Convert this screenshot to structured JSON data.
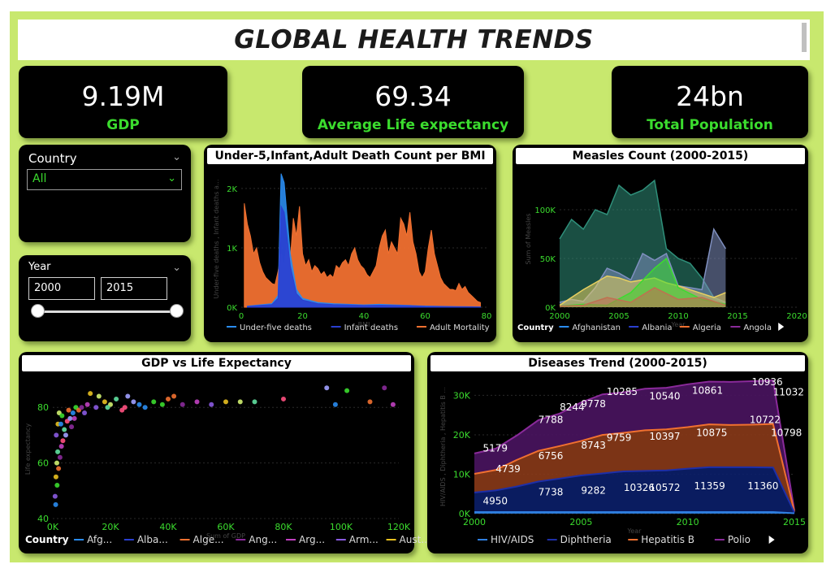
{
  "title": "GLOBAL HEALTH TRENDS",
  "kpis": [
    {
      "value": "9.19M",
      "label": "GDP"
    },
    {
      "value": "69.34",
      "label": "Average Life expectancy"
    },
    {
      "value": "24bn",
      "label": "Total Population"
    }
  ],
  "slicers": {
    "country": {
      "label": "Country",
      "value": "All"
    },
    "year": {
      "label": "Year",
      "from": "2000",
      "to": "2015"
    }
  },
  "colors": {
    "background": "#c8e86e",
    "card": "#000000",
    "accent": "#3bdc2e",
    "under_five": "#2a8cf0",
    "infant": "#2a3fd0",
    "adult": "#f07030",
    "hiv": "#2f7fe0",
    "diphtheria": "#1e2fa8",
    "hepatitis": "#f07030",
    "polio": "#8a2a9a"
  },
  "chart_data": [
    {
      "type": "area",
      "title": "Under-5,Infant,Adult Death Count per BMI",
      "xlabel": "BMI",
      "ylabel": "Under-five deaths , Infant deaths a...",
      "x_ticks": [
        "0",
        "20",
        "40",
        "60",
        "80"
      ],
      "y_ticks": [
        "0K",
        "1K",
        "2K"
      ],
      "xlim": [
        0,
        80
      ],
      "ylim": [
        0,
        2300
      ],
      "series": [
        {
          "name": "Under-five deaths",
          "x": [
            2,
            6,
            10,
            12,
            13,
            14,
            15,
            16,
            18,
            20,
            25,
            30,
            35,
            40,
            45,
            50,
            55,
            60,
            65,
            70,
            75,
            78
          ],
          "values": [
            20,
            40,
            60,
            200,
            2250,
            2100,
            1500,
            900,
            300,
            150,
            80,
            60,
            50,
            40,
            50,
            40,
            30,
            20,
            15,
            10,
            8,
            5
          ]
        },
        {
          "name": "Infant deaths",
          "x": [
            2,
            6,
            10,
            12,
            13,
            14,
            15,
            16,
            18,
            20,
            25,
            30,
            35,
            40,
            45,
            50,
            55,
            60,
            65,
            70,
            75,
            78
          ],
          "values": [
            15,
            30,
            45,
            150,
            1700,
            1600,
            1150,
            700,
            230,
            120,
            60,
            45,
            40,
            30,
            35,
            30,
            25,
            15,
            12,
            8,
            6,
            4
          ]
        },
        {
          "name": "Adult Mortality",
          "x": [
            1,
            2,
            3,
            4,
            5,
            6,
            7,
            8,
            9,
            10,
            11,
            12,
            13,
            14,
            15,
            16,
            17,
            18,
            19,
            20,
            21,
            22,
            23,
            24,
            25,
            26,
            27,
            28,
            29,
            30,
            31,
            32,
            33,
            34,
            35,
            36,
            37,
            38,
            39,
            40,
            41,
            42,
            43,
            44,
            45,
            46,
            47,
            48,
            49,
            50,
            51,
            52,
            53,
            54,
            55,
            56,
            57,
            58,
            59,
            60,
            61,
            62,
            63,
            64,
            65,
            66,
            67,
            68,
            69,
            70,
            71,
            72,
            73,
            74,
            75,
            76,
            77,
            78
          ],
          "values": [
            1750,
            1400,
            1200,
            900,
            1000,
            750,
            600,
            500,
            450,
            400,
            380,
            600,
            900,
            700,
            1100,
            800,
            1500,
            1200,
            1700,
            900,
            700,
            800,
            600,
            700,
            650,
            550,
            600,
            500,
            550,
            500,
            700,
            650,
            750,
            800,
            700,
            900,
            1000,
            800,
            700,
            650,
            550,
            500,
            600,
            700,
            1000,
            1200,
            1300,
            900,
            1100,
            1000,
            900,
            1500,
            1400,
            1200,
            1600,
            1100,
            900,
            600,
            500,
            600,
            1000,
            1300,
            900,
            700,
            500,
            400,
            350,
            300,
            300,
            280,
            400,
            300,
            350,
            250,
            200,
            150,
            100,
            80
          ]
        }
      ]
    },
    {
      "type": "area",
      "title": "Measles Count (2000-2015)",
      "xlabel": "Year",
      "ylabel": "Sum of Measles",
      "x_ticks": [
        "2000",
        "2005",
        "2010",
        "2015",
        "2020"
      ],
      "y_ticks": [
        "0K",
        "50K",
        "100K"
      ],
      "xlim": [
        2000,
        2020
      ],
      "ylim": [
        0,
        140000
      ],
      "legend_title": "Country",
      "legend": [
        "Afghanistan",
        "Albania",
        "Algeria",
        "Angola"
      ],
      "series": [
        {
          "color": "#2f8f7a",
          "x": [
            2000,
            2001,
            2002,
            2003,
            2004,
            2005,
            2006,
            2007,
            2008,
            2009,
            2010,
            2011,
            2012,
            2013,
            2014
          ],
          "values": [
            70000,
            90000,
            80000,
            100000,
            95000,
            125000,
            115000,
            120000,
            130000,
            60000,
            50000,
            45000,
            30000,
            10000,
            5000
          ]
        },
        {
          "color": "#8090c0",
          "x": [
            2000,
            2001,
            2002,
            2003,
            2004,
            2005,
            2006,
            2007,
            2008,
            2009,
            2010,
            2011,
            2012,
            2013,
            2014
          ],
          "values": [
            5000,
            8000,
            6000,
            20000,
            40000,
            35000,
            28000,
            55000,
            48000,
            55000,
            22000,
            20000,
            18000,
            80000,
            60000
          ]
        },
        {
          "color": "#e8d060",
          "x": [
            2000,
            2001,
            2002,
            2003,
            2004,
            2005,
            2006,
            2007,
            2008,
            2009,
            2010,
            2011,
            2012,
            2013,
            2014
          ],
          "values": [
            2000,
            10000,
            18000,
            25000,
            32000,
            30000,
            26000,
            28000,
            30000,
            25000,
            22000,
            18000,
            14000,
            10000,
            15000
          ]
        },
        {
          "color": "#3bdc2e",
          "x": [
            2000,
            2002,
            2004,
            2006,
            2008,
            2009,
            2010,
            2012,
            2014
          ],
          "values": [
            1000,
            3000,
            2000,
            15000,
            40000,
            50000,
            20000,
            8000,
            3000
          ]
        },
        {
          "color": "#c07050",
          "x": [
            2000,
            2002,
            2004,
            2006,
            2008,
            2010,
            2012,
            2014
          ],
          "values": [
            1000,
            2000,
            10000,
            5000,
            20000,
            8000,
            10000,
            2000
          ]
        }
      ]
    },
    {
      "type": "scatter",
      "title": "GDP vs Life Expectancy",
      "xlabel": "Sum of GDP",
      "ylabel": "Life expectancy",
      "x_ticks": [
        "0K",
        "20K",
        "40K",
        "60K",
        "80K",
        "100K",
        "120K"
      ],
      "y_ticks": [
        "40",
        "60",
        "80"
      ],
      "xlim": [
        0,
        120000
      ],
      "ylim": [
        40,
        90
      ],
      "legend_title": "Country",
      "legend": [
        "Afg...",
        "Alba...",
        "Alge...",
        "Ang...",
        "Arg...",
        "Arm...",
        "Aust..."
      ],
      "legend_colors": [
        "#2a8cf0",
        "#2a3fd0",
        "#f07030",
        "#8a2a9a",
        "#c040c0",
        "#8a5ae0",
        "#e8c020"
      ],
      "points": [
        [
          1000,
          45
        ],
        [
          1500,
          52
        ],
        [
          2000,
          58
        ],
        [
          2500,
          62
        ],
        [
          3000,
          66
        ],
        [
          1200,
          70
        ],
        [
          1800,
          74
        ],
        [
          2200,
          78
        ],
        [
          4000,
          72
        ],
        [
          5000,
          75
        ],
        [
          6000,
          76
        ],
        [
          7000,
          78
        ],
        [
          8000,
          80
        ],
        [
          9000,
          79
        ],
        [
          10000,
          80
        ],
        [
          12000,
          81
        ],
        [
          15000,
          80
        ],
        [
          18000,
          82
        ],
        [
          20000,
          81
        ],
        [
          22000,
          83
        ],
        [
          25000,
          80
        ],
        [
          28000,
          82
        ],
        [
          30000,
          81
        ],
        [
          35000,
          82
        ],
        [
          40000,
          83
        ],
        [
          45000,
          81
        ],
        [
          50000,
          82
        ],
        [
          55000,
          81
        ],
        [
          60000,
          82
        ],
        [
          65000,
          82
        ],
        [
          70000,
          82
        ],
        [
          80000,
          83
        ],
        [
          95000,
          87
        ],
        [
          98000,
          81
        ],
        [
          102000,
          86
        ],
        [
          110000,
          82
        ],
        [
          115000,
          87
        ],
        [
          118000,
          81
        ],
        [
          800,
          48
        ],
        [
          1100,
          55
        ],
        [
          1400,
          60
        ],
        [
          1700,
          64
        ],
        [
          3500,
          68
        ],
        [
          4500,
          70
        ],
        [
          2800,
          74
        ],
        [
          3200,
          77
        ],
        [
          5500,
          79
        ],
        [
          6500,
          73
        ],
        [
          7500,
          76
        ],
        [
          11000,
          78
        ],
        [
          13000,
          85
        ],
        [
          16000,
          84
        ],
        [
          19000,
          80
        ],
        [
          24000,
          79
        ],
        [
          26000,
          84
        ],
        [
          32000,
          80
        ],
        [
          38000,
          81
        ],
        [
          42000,
          84
        ]
      ]
    },
    {
      "type": "area",
      "title": "Diseases Trend (2000-2015)",
      "xlabel": "Year",
      "ylabel": "HIV/AIDS , Diphtheria , Hepatitis B ...",
      "x_ticks": [
        "2000",
        "2005",
        "2010",
        "2015"
      ],
      "y_ticks": [
        "0K",
        "10K",
        "20K",
        "30K"
      ],
      "xlim": [
        2000,
        2015
      ],
      "ylim": [
        0,
        34000
      ],
      "categories": [
        2000,
        2001,
        2002,
        2003,
        2004,
        2005,
        2006,
        2007,
        2008,
        2009,
        2010,
        2011,
        2012,
        2013,
        2014,
        2015
      ],
      "series": [
        {
          "name": "HIV/AIDS",
          "values": [
            400,
            400,
            400,
            400,
            400,
            400,
            400,
            400,
            400,
            400,
            400,
            400,
            400,
            400,
            400,
            100
          ]
        },
        {
          "name": "Diphtheria",
          "values": [
            4950,
            5500,
            6500,
            7738,
            8500,
            9282,
            9800,
            10326,
            10450,
            10572,
            11000,
            11359,
            11360,
            11360,
            11300,
            200
          ]
        },
        {
          "name": "Hepatitis B",
          "values": [
            4739,
            5179,
            6756,
            7788,
            8244,
            8743,
            9759,
            9778,
            10285,
            10397,
            10540,
            10875,
            10722,
            10798,
            11032,
            200
          ]
        },
        {
          "name": "Polio",
          "values": [
            5179,
            5400,
            6200,
            7788,
            8244,
            9778,
            10285,
            10285,
            10540,
            10540,
            10861,
            10861,
            10936,
            11032,
            11032,
            300
          ]
        }
      ],
      "data_labels": [
        {
          "x": 2000.4,
          "y": 15800,
          "text": "5179"
        },
        {
          "x": 2001.0,
          "y": 10500,
          "text": "4739"
        },
        {
          "x": 2000.4,
          "y": 2400,
          "text": "4950"
        },
        {
          "x": 2003.0,
          "y": 23000,
          "text": "7788"
        },
        {
          "x": 2004.0,
          "y": 26200,
          "text": "8244"
        },
        {
          "x": 2003.0,
          "y": 13800,
          "text": "6756"
        },
        {
          "x": 2003.0,
          "y": 4600,
          "text": "7738"
        },
        {
          "x": 2005.0,
          "y": 27000,
          "text": "9778"
        },
        {
          "x": 2005.0,
          "y": 16500,
          "text": "8743"
        },
        {
          "x": 2005.0,
          "y": 5000,
          "text": "9282"
        },
        {
          "x": 2006.2,
          "y": 30100,
          "text": "10285"
        },
        {
          "x": 2006.2,
          "y": 18400,
          "text": "9759"
        },
        {
          "x": 2007.0,
          "y": 5800,
          "text": "10326"
        },
        {
          "x": 2008.2,
          "y": 29000,
          "text": "10540"
        },
        {
          "x": 2008.2,
          "y": 18800,
          "text": "10397"
        },
        {
          "x": 2008.2,
          "y": 5800,
          "text": "10572"
        },
        {
          "x": 2010.2,
          "y": 30400,
          "text": "10861"
        },
        {
          "x": 2010.4,
          "y": 19700,
          "text": "10875"
        },
        {
          "x": 2010.3,
          "y": 6200,
          "text": "11359"
        },
        {
          "x": 2013.0,
          "y": 32600,
          "text": "10936"
        },
        {
          "x": 2014.0,
          "y": 30000,
          "text": "11032"
        },
        {
          "x": 2012.9,
          "y": 23000,
          "text": "10722"
        },
        {
          "x": 2013.9,
          "y": 19700,
          "text": "10798"
        },
        {
          "x": 2012.8,
          "y": 6200,
          "text": "11360"
        }
      ]
    }
  ]
}
